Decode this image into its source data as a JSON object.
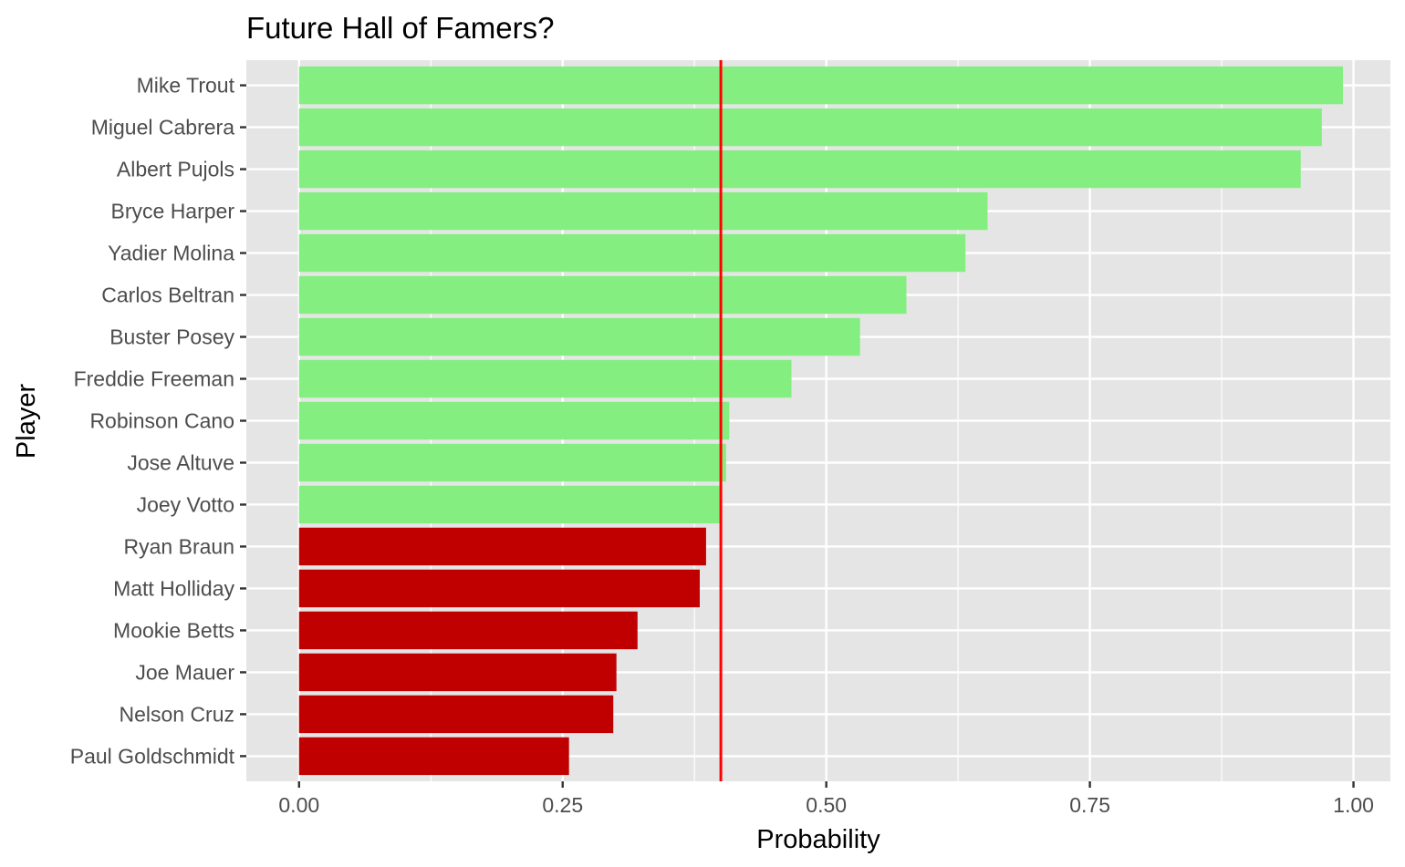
{
  "chart_data": {
    "type": "bar",
    "orientation": "horizontal",
    "title": "Future Hall of Famers?",
    "xlabel": "Probability",
    "ylabel": "Player",
    "xlim": [
      -0.05,
      1.035
    ],
    "xticks": [
      0.0,
      0.25,
      0.5,
      0.75,
      1.0
    ],
    "xtick_labels": [
      "0.00",
      "0.25",
      "0.50",
      "0.75",
      "1.00"
    ],
    "threshold": 0.4,
    "threshold_color": "#ff0000",
    "grid": true,
    "legend": "none",
    "colors": {
      "above": "#84ef80",
      "below": "#c00000",
      "panel": "#e5e5e5",
      "grid": "#ffffff"
    },
    "categories": [
      "Mike Trout",
      "Miguel Cabrera",
      "Albert Pujols",
      "Bryce Harper",
      "Yadier Molina",
      "Carlos Beltran",
      "Buster Posey",
      "Freddie Freeman",
      "Robinson Cano",
      "Jose Altuve",
      "Joey Votto",
      "Ryan Braun",
      "Matt Holliday",
      "Mookie Betts",
      "Joe Mauer",
      "Nelson Cruz",
      "Paul Goldschmidt"
    ],
    "values": [
      0.99,
      0.97,
      0.95,
      0.653,
      0.632,
      0.576,
      0.532,
      0.467,
      0.408,
      0.405,
      0.401,
      0.386,
      0.38,
      0.321,
      0.301,
      0.298,
      0.256
    ]
  }
}
